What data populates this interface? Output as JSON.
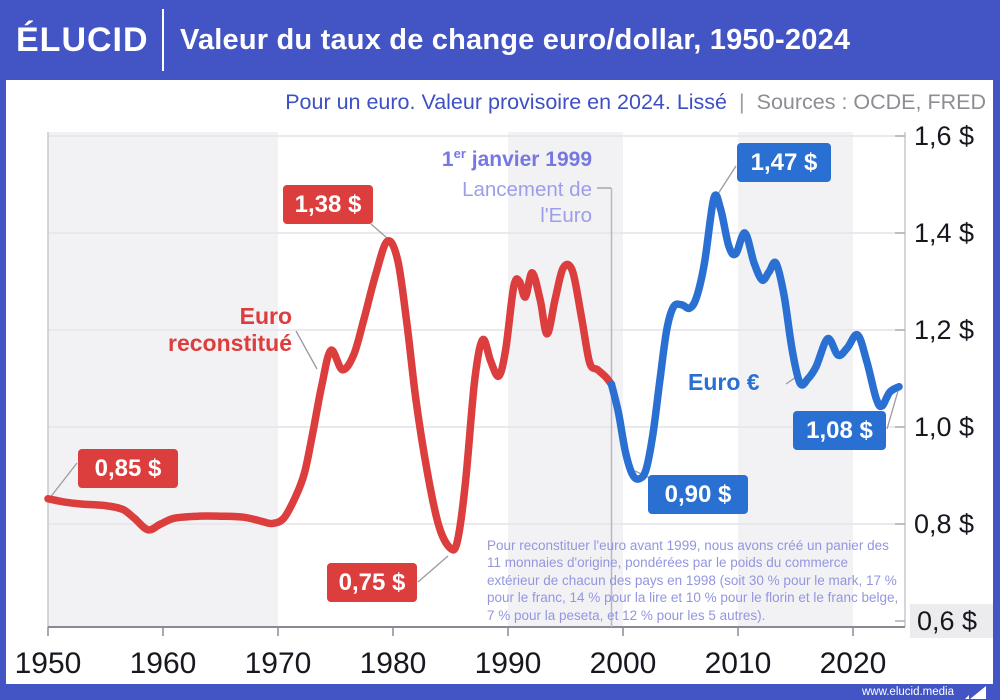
{
  "header": {
    "logo": "ÉLUCID",
    "title": "Valeur du taux de change euro/dollar, 1950-2024"
  },
  "subtitle": {
    "main": "Pour un euro. Valeur provisoire en 2024. Lissé",
    "separator": "|",
    "sources": "Sources : OCDE, FRED"
  },
  "annotations": {
    "euro_reconstitue_line1": "Euro",
    "euro_reconstitue_line2": "reconstitué",
    "euro_symbol": "Euro €",
    "launch_prefix": "1",
    "launch_sup": "er",
    "launch_rest": " janvier 1999",
    "launch_line2": "Lancement de",
    "launch_line3": "l'Euro",
    "method_note": "Pour reconstituer l'euro avant 1999, nous avons créé un panier des 11 monnaies d'origine, pondérées par le poids du commerce extérieur de chacun des pays en 1998 (soit 30 % pour le mark, 17 % pour le franc, 14 % pour la lire et 10 % pour le florin et le franc belge, 7 % pour la peseta, et 12 % pour les 5 autres)."
  },
  "badges": {
    "b085": "0,85 $",
    "b138": "1,38 $",
    "b075": "0,75 $",
    "b090": "0,90 $",
    "b147": "1,47 $",
    "b108": "1,08 $"
  },
  "footer": {
    "url": "www.elucid.media"
  },
  "colors": {
    "brand_blue": "#4354C4",
    "red_series": "#DC3D3D",
    "blue_series": "#2A70D2",
    "purple_bold": "#7678E0",
    "purple_light": "#9C9EEA",
    "band_gray": "#F2F2F5",
    "grid": "#E3E3E9",
    "axis": "#8A8A92",
    "callout": "#9A9AA2"
  },
  "chart_data": {
    "type": "line",
    "title": "Valeur du taux de change euro/dollar, 1950-2024",
    "xlabel": "",
    "ylabel": "",
    "x_range": [
      1950,
      2024
    ],
    "y_range_dollars": [
      0.6,
      1.6
    ],
    "grid": true,
    "legend_position": "inline-annotations",
    "x_ticks": [
      {
        "year": 1950,
        "label": "1950"
      },
      {
        "year": 1960,
        "label": "1960"
      },
      {
        "year": 1970,
        "label": "1970"
      },
      {
        "year": 1980,
        "label": "1980"
      },
      {
        "year": 1990,
        "label": "1990"
      },
      {
        "year": 2000,
        "label": "2000"
      },
      {
        "year": 2010,
        "label": "2010"
      },
      {
        "year": 2020,
        "label": "2020"
      }
    ],
    "y_ticks": [
      {
        "value": 1.6,
        "label": "1,6 $",
        "highlight": false
      },
      {
        "value": 1.4,
        "label": "1,4 $",
        "highlight": false
      },
      {
        "value": 1.2,
        "label": "1,2 $",
        "highlight": false
      },
      {
        "value": 1.0,
        "label": "1,0 $",
        "highlight": false
      },
      {
        "value": 0.8,
        "label": "0,8 $",
        "highlight": false
      },
      {
        "value": 0.6,
        "label": "0,6 $",
        "highlight": true
      }
    ],
    "shaded_decades": [
      [
        1950,
        1970
      ],
      [
        1990,
        2000
      ],
      [
        2010,
        2020
      ]
    ],
    "event_line_year": 1999,
    "series": [
      {
        "name": "Euro reconstitué",
        "color": "#DC3D3D",
        "points": [
          [
            1950,
            0.852
          ],
          [
            1951.5,
            0.845
          ],
          [
            1953,
            0.841
          ],
          [
            1955,
            0.838
          ],
          [
            1956.5,
            0.83
          ],
          [
            1957.5,
            0.812
          ],
          [
            1958.7,
            0.788
          ],
          [
            1959.8,
            0.8
          ],
          [
            1961,
            0.812
          ],
          [
            1963,
            0.816
          ],
          [
            1965,
            0.816
          ],
          [
            1967,
            0.814
          ],
          [
            1968.5,
            0.806
          ],
          [
            1969.5,
            0.801
          ],
          [
            1970.5,
            0.812
          ],
          [
            1971.5,
            0.855
          ],
          [
            1972.3,
            0.905
          ],
          [
            1973,
            0.985
          ],
          [
            1973.8,
            1.085
          ],
          [
            1974.6,
            1.158
          ],
          [
            1975.6,
            1.118
          ],
          [
            1976.6,
            1.15
          ],
          [
            1977.5,
            1.225
          ],
          [
            1978.5,
            1.315
          ],
          [
            1979.5,
            1.383
          ],
          [
            1980.4,
            1.345
          ],
          [
            1981.2,
            1.215
          ],
          [
            1982,
            1.055
          ],
          [
            1983,
            0.905
          ],
          [
            1984,
            0.795
          ],
          [
            1985,
            0.75
          ],
          [
            1985.6,
            0.765
          ],
          [
            1986.3,
            0.885
          ],
          [
            1987.1,
            1.095
          ],
          [
            1987.8,
            1.18
          ],
          [
            1988.5,
            1.135
          ],
          [
            1989.2,
            1.105
          ],
          [
            1989.8,
            1.16
          ],
          [
            1990.5,
            1.29
          ],
          [
            1991,
            1.3
          ],
          [
            1991.5,
            1.268
          ],
          [
            1992.1,
            1.318
          ],
          [
            1992.8,
            1.262
          ],
          [
            1993.4,
            1.192
          ],
          [
            1994.1,
            1.263
          ],
          [
            1994.8,
            1.328
          ],
          [
            1995.6,
            1.322
          ],
          [
            1996.4,
            1.225
          ],
          [
            1997.1,
            1.133
          ],
          [
            1997.8,
            1.118
          ],
          [
            1998.5,
            1.103
          ],
          [
            1999,
            1.088
          ]
        ]
      },
      {
        "name": "Euro €",
        "color": "#2A70D2",
        "points": [
          [
            1999,
            1.088
          ],
          [
            1999.6,
            1.03
          ],
          [
            2000.2,
            0.95
          ],
          [
            2000.8,
            0.903
          ],
          [
            2001.4,
            0.893
          ],
          [
            2002,
            0.912
          ],
          [
            2002.6,
            0.985
          ],
          [
            2003.2,
            1.095
          ],
          [
            2003.8,
            1.2
          ],
          [
            2004.4,
            1.248
          ],
          [
            2005.1,
            1.252
          ],
          [
            2005.8,
            1.245
          ],
          [
            2006.4,
            1.268
          ],
          [
            2007.1,
            1.34
          ],
          [
            2007.9,
            1.472
          ],
          [
            2008.5,
            1.448
          ],
          [
            2009.2,
            1.373
          ],
          [
            2009.8,
            1.357
          ],
          [
            2010.6,
            1.4
          ],
          [
            2011.4,
            1.338
          ],
          [
            2012.1,
            1.303
          ],
          [
            2012.7,
            1.32
          ],
          [
            2013.3,
            1.338
          ],
          [
            2014,
            1.272
          ],
          [
            2014.7,
            1.16
          ],
          [
            2015.4,
            1.09
          ],
          [
            2016.1,
            1.1
          ],
          [
            2016.8,
            1.125
          ],
          [
            2017.8,
            1.182
          ],
          [
            2018.7,
            1.148
          ],
          [
            2019.5,
            1.163
          ],
          [
            2020.4,
            1.19
          ],
          [
            2021.2,
            1.135
          ],
          [
            2022,
            1.06
          ],
          [
            2022.5,
            1.043
          ],
          [
            2023.2,
            1.072
          ],
          [
            2024,
            1.083
          ]
        ]
      }
    ],
    "key_points": [
      {
        "year": 1950,
        "value_label": "0,85 $"
      },
      {
        "year": 1979.5,
        "value_label": "1,38 $"
      },
      {
        "year": 1985,
        "value_label": "0,75 $"
      },
      {
        "year": 2001,
        "value_label": "0,90 $"
      },
      {
        "year": 2008,
        "value_label": "1,47 $"
      },
      {
        "year": 2024,
        "value_label": "1,08 $"
      }
    ]
  }
}
